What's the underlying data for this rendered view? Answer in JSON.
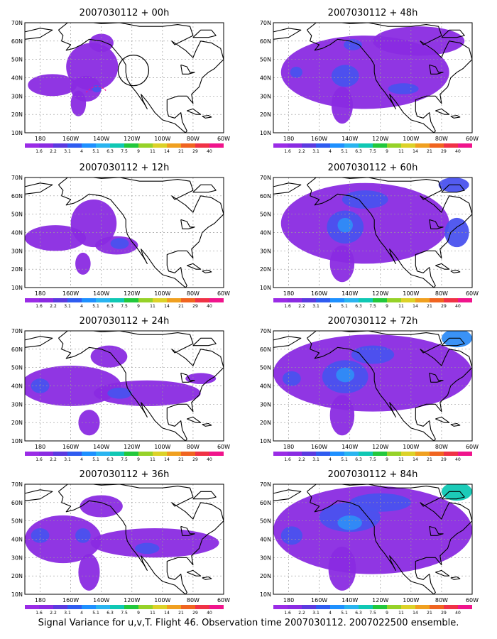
{
  "figure": {
    "caption": "Signal Variance for u,v,T. Flight 46. Observation time 2007030112. 2007022500 ensemble."
  },
  "axes": {
    "lat_ticks": [
      "10N",
      "20N",
      "30N",
      "40N",
      "50N",
      "60N",
      "70N"
    ],
    "lon_ticks": [
      "180",
      "160W",
      "140W",
      "120W",
      "100W",
      "80W",
      "60W"
    ],
    "lon_range_deg": [
      -190,
      -60
    ],
    "lat_range_deg": [
      10,
      70
    ]
  },
  "colorbar": {
    "labels": [
      "1.6",
      "2.2",
      "3.1",
      "4",
      "5.1",
      "6.3",
      "7.5",
      "9",
      "11",
      "14",
      "21",
      "29",
      "40"
    ],
    "colors": [
      "#9a2ce6",
      "#8a2be2",
      "#5b3ae0",
      "#2f5cf0",
      "#1e90ff",
      "#2ab4f0",
      "#10c8b4",
      "#22c83c",
      "#96d228",
      "#dcd228",
      "#f0a020",
      "#f06420",
      "#f03246",
      "#f0148c"
    ]
  },
  "panels": [
    {
      "title": "2007030112 + 00h",
      "annotation": {
        "type": "circle",
        "lon": -119,
        "lat": 44,
        "radius_deg": 10
      },
      "blobs": [
        {
          "lon": -172,
          "lat": 36,
          "rx": 16,
          "ry": 6,
          "level": 1
        },
        {
          "lon": -146,
          "lat": 46,
          "rx": 17,
          "ry": 13,
          "level": 1
        },
        {
          "lon": -150,
          "lat": 34,
          "rx": 10,
          "ry": 7,
          "level": 1
        },
        {
          "lon": -155,
          "lat": 26,
          "rx": 5,
          "ry": 7,
          "level": 1
        },
        {
          "lon": -140,
          "lat": 59,
          "rx": 8,
          "ry": 5,
          "level": 1
        },
        {
          "lon": -143,
          "lat": 34,
          "rx": 3,
          "ry": 2,
          "level": 3
        }
      ]
    },
    {
      "title": "2007030112 + 48h",
      "blobs": [
        {
          "lon": -130,
          "lat": 43,
          "rx": 55,
          "ry": 20,
          "level": 1
        },
        {
          "lon": -145,
          "lat": 25,
          "rx": 7,
          "ry": 10,
          "level": 1
        },
        {
          "lon": -95,
          "lat": 60,
          "rx": 30,
          "ry": 8,
          "level": 1
        },
        {
          "lon": -143,
          "lat": 41,
          "rx": 9,
          "ry": 6,
          "level": 3
        },
        {
          "lon": -138,
          "lat": 58,
          "rx": 6,
          "ry": 3,
          "level": 3
        },
        {
          "lon": -175,
          "lat": 43,
          "rx": 4,
          "ry": 3,
          "level": 3
        },
        {
          "lon": -105,
          "lat": 34,
          "rx": 10,
          "ry": 3,
          "level": 3
        }
      ]
    },
    {
      "title": "2007030112 + 12h",
      "blobs": [
        {
          "lon": -170,
          "lat": 37,
          "rx": 20,
          "ry": 7,
          "level": 1
        },
        {
          "lon": -145,
          "lat": 45,
          "rx": 15,
          "ry": 13,
          "level": 1
        },
        {
          "lon": -130,
          "lat": 33,
          "rx": 14,
          "ry": 5,
          "level": 1
        },
        {
          "lon": -152,
          "lat": 23,
          "rx": 5,
          "ry": 6,
          "level": 1
        },
        {
          "lon": -128,
          "lat": 34,
          "rx": 6,
          "ry": 3,
          "level": 3
        }
      ]
    },
    {
      "title": "2007030112 + 60h",
      "blobs": [
        {
          "lon": -130,
          "lat": 45,
          "rx": 55,
          "ry": 22,
          "level": 1
        },
        {
          "lon": -145,
          "lat": 23,
          "rx": 8,
          "ry": 10,
          "level": 1
        },
        {
          "lon": -143,
          "lat": 43,
          "rx": 12,
          "ry": 9,
          "level": 3
        },
        {
          "lon": -143,
          "lat": 44,
          "rx": 5,
          "ry": 4,
          "level": 4
        },
        {
          "lon": -130,
          "lat": 58,
          "rx": 15,
          "ry": 5,
          "level": 3
        },
        {
          "lon": -70,
          "lat": 40,
          "rx": 8,
          "ry": 8,
          "level": 3
        },
        {
          "lon": -72,
          "lat": 66,
          "rx": 10,
          "ry": 4,
          "level": 3
        }
      ]
    },
    {
      "title": "2007030112 + 24h",
      "blobs": [
        {
          "lon": -160,
          "lat": 40,
          "rx": 33,
          "ry": 11,
          "level": 1
        },
        {
          "lon": -110,
          "lat": 36,
          "rx": 35,
          "ry": 7,
          "level": 1
        },
        {
          "lon": -148,
          "lat": 20,
          "rx": 7,
          "ry": 7,
          "level": 1
        },
        {
          "lon": -135,
          "lat": 56,
          "rx": 12,
          "ry": 6,
          "level": 1
        },
        {
          "lon": -180,
          "lat": 40,
          "rx": 6,
          "ry": 4,
          "level": 3
        },
        {
          "lon": -128,
          "lat": 36,
          "rx": 8,
          "ry": 3,
          "level": 3
        },
        {
          "lon": -75,
          "lat": 44,
          "rx": 10,
          "ry": 3,
          "level": 1
        }
      ]
    },
    {
      "title": "2007030112 + 72h",
      "blobs": [
        {
          "lon": -125,
          "lat": 47,
          "rx": 65,
          "ry": 21,
          "level": 1
        },
        {
          "lon": -145,
          "lat": 24,
          "rx": 8,
          "ry": 11,
          "level": 1
        },
        {
          "lon": -143,
          "lat": 45,
          "rx": 15,
          "ry": 9,
          "level": 3
        },
        {
          "lon": -143,
          "lat": 46,
          "rx": 6,
          "ry": 4,
          "level": 4
        },
        {
          "lon": -125,
          "lat": 57,
          "rx": 14,
          "ry": 5,
          "level": 3
        },
        {
          "lon": -70,
          "lat": 66,
          "rx": 10,
          "ry": 5,
          "level": 4
        },
        {
          "lon": -178,
          "lat": 44,
          "rx": 6,
          "ry": 4,
          "level": 3
        }
      ]
    },
    {
      "title": "2007030112 + 36h",
      "blobs": [
        {
          "lon": -165,
          "lat": 40,
          "rx": 25,
          "ry": 13,
          "level": 1
        },
        {
          "lon": -105,
          "lat": 38,
          "rx": 42,
          "ry": 8,
          "level": 1
        },
        {
          "lon": -148,
          "lat": 22,
          "rx": 7,
          "ry": 10,
          "level": 1
        },
        {
          "lon": -140,
          "lat": 58,
          "rx": 14,
          "ry": 6,
          "level": 1
        },
        {
          "lon": -180,
          "lat": 42,
          "rx": 6,
          "ry": 4,
          "level": 3
        },
        {
          "lon": -152,
          "lat": 42,
          "rx": 5,
          "ry": 4,
          "level": 3
        },
        {
          "lon": -110,
          "lat": 35,
          "rx": 8,
          "ry": 3,
          "level": 3
        }
      ]
    },
    {
      "title": "2007030112 + 84h",
      "blobs": [
        {
          "lon": -125,
          "lat": 45,
          "rx": 65,
          "ry": 24,
          "level": 1
        },
        {
          "lon": -145,
          "lat": 24,
          "rx": 9,
          "ry": 12,
          "level": 1
        },
        {
          "lon": -140,
          "lat": 52,
          "rx": 20,
          "ry": 8,
          "level": 3
        },
        {
          "lon": -120,
          "lat": 60,
          "rx": 20,
          "ry": 5,
          "level": 3
        },
        {
          "lon": -140,
          "lat": 49,
          "rx": 8,
          "ry": 4,
          "level": 4
        },
        {
          "lon": -70,
          "lat": 66,
          "rx": 10,
          "ry": 5,
          "level": 6
        },
        {
          "lon": -178,
          "lat": 42,
          "rx": 7,
          "ry": 5,
          "level": 3
        }
      ]
    }
  ]
}
